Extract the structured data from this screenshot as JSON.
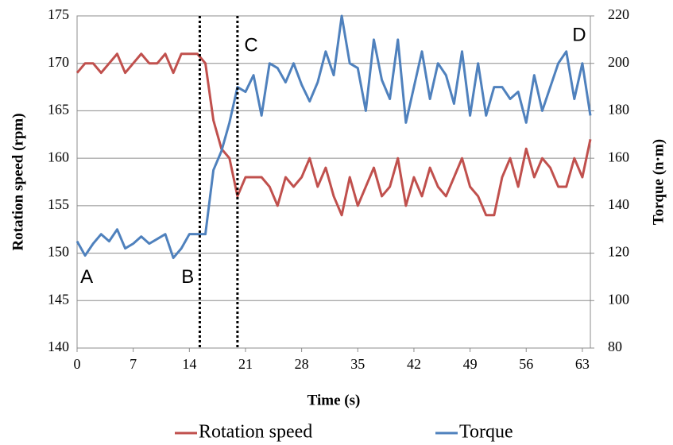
{
  "chart_data": {
    "type": "line",
    "x_label": "Time (s)",
    "y_label": "Rotation speed (rpm)",
    "y2_label": "Torque (n·m)",
    "x": [
      0,
      1,
      2,
      3,
      4,
      5,
      6,
      7,
      8,
      9,
      10,
      11,
      12,
      13,
      14,
      15,
      16,
      17,
      18,
      19,
      20,
      21,
      22,
      23,
      24,
      25,
      26,
      27,
      28,
      29,
      30,
      31,
      32,
      33,
      34,
      35,
      36,
      37,
      38,
      39,
      40,
      41,
      42,
      43,
      44,
      45,
      46,
      47,
      48,
      49,
      50,
      51,
      52,
      53,
      54,
      55,
      56,
      57,
      58,
      59,
      60,
      61,
      62,
      63,
      64
    ],
    "series": [
      {
        "name": "Rotation speed",
        "color": "#c0504d",
        "values": [
          169,
          170,
          170,
          169,
          170,
          171,
          169,
          170,
          171,
          170,
          170,
          171,
          169,
          171,
          171,
          171,
          170,
          164,
          161,
          160,
          156,
          158,
          158,
          158,
          157,
          155,
          158,
          157,
          158,
          160,
          157,
          159,
          156,
          154,
          158,
          155,
          157,
          159,
          156,
          157,
          160,
          155,
          158,
          156,
          159,
          157,
          156,
          158,
          160,
          157,
          156,
          154,
          154,
          158,
          160,
          157,
          161,
          158,
          160,
          159,
          157,
          157,
          160,
          158,
          162
        ]
      },
      {
        "name": "Torque",
        "color": "#4f81bd",
        "axis": "y2",
        "values": [
          125,
          119,
          124,
          128,
          125,
          130,
          122,
          124,
          127,
          124,
          126,
          128,
          118,
          122,
          128,
          128,
          128,
          155,
          163,
          175,
          190,
          188,
          195,
          178,
          200,
          198,
          192,
          200,
          191,
          184,
          192,
          205,
          195,
          220,
          200,
          198,
          180,
          210,
          193,
          185,
          210,
          175,
          190,
          205,
          185,
          200,
          195,
          183,
          205,
          178,
          200,
          178,
          190,
          190,
          185,
          188,
          175,
          195,
          180,
          190,
          200,
          205,
          185,
          200,
          178
        ]
      }
    ],
    "xlim": [
      0,
      64
    ],
    "xticks": [
      0,
      7,
      14,
      21,
      28,
      35,
      42,
      49,
      56,
      63
    ],
    "ylim": [
      140,
      175
    ],
    "yticks": [
      140,
      145,
      150,
      155,
      160,
      165,
      170,
      175
    ],
    "y2lim": [
      80,
      220
    ],
    "y2ticks": [
      80,
      100,
      120,
      140,
      160,
      180,
      200,
      220
    ],
    "grid": true,
    "vlines": [
      15.3,
      20
    ],
    "annotations": [
      {
        "text": "A",
        "x": 1.2,
        "y": 147.4
      },
      {
        "text": "B",
        "x": 13.8,
        "y": 147.4
      },
      {
        "text": "C",
        "x": 21.7,
        "y": 171.8
      },
      {
        "text": "D",
        "x": 62.6,
        "y": 172.9
      }
    ],
    "legend": "bottom"
  }
}
